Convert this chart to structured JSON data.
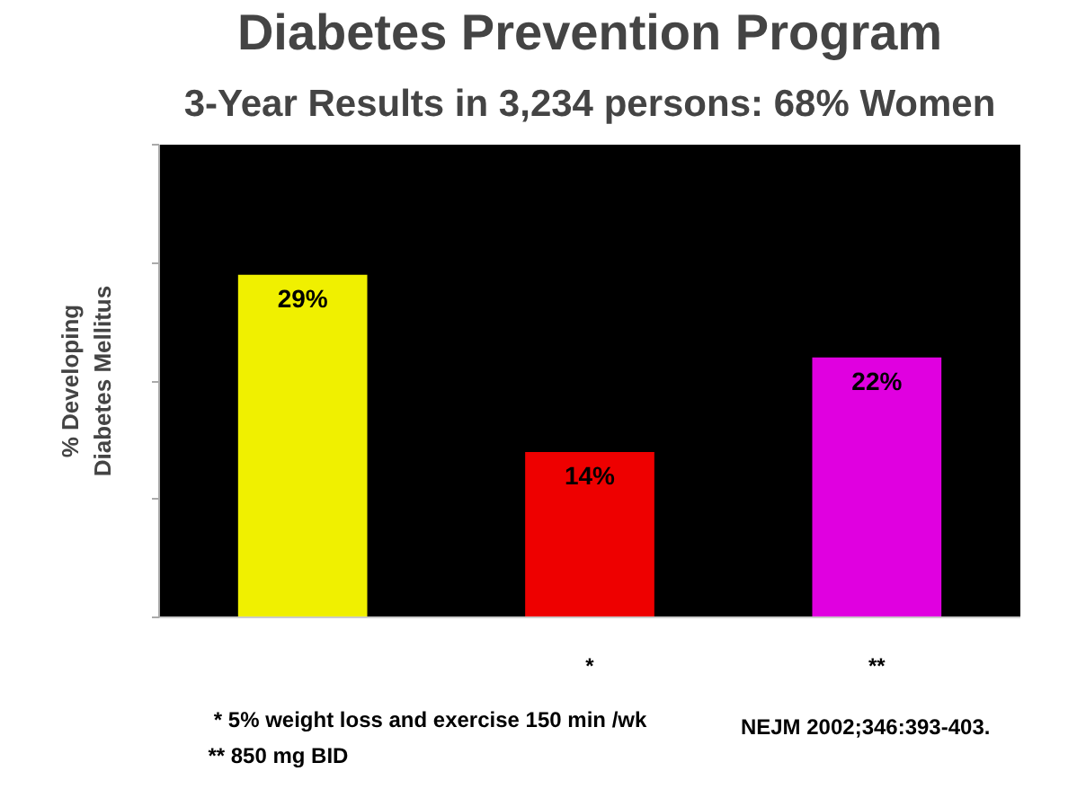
{
  "chart_data": {
    "type": "bar",
    "title": "Diabetes Prevention Program",
    "subtitle": "3-Year Results in 3,234 persons: 68% Women",
    "ylabel": "% Developing\nDiabetes Mellitus",
    "categories": [
      null,
      "*",
      "**"
    ],
    "values": [
      29,
      14,
      22
    ],
    "colors": [
      "#f0f000",
      "#ee0000",
      "#e000e0"
    ],
    "value_labels": [
      "29%",
      "14%",
      "22%"
    ],
    "ylim": [
      0,
      40
    ],
    "yticks": [
      {
        "value": 0,
        "label": null
      },
      {
        "value": 10,
        "label": null
      },
      {
        "value": 20,
        "label": null
      },
      {
        "value": 30,
        "label": null
      },
      {
        "value": 40,
        "label": null
      }
    ],
    "tick_labels": "x",
    "grid": false,
    "annotations": [
      "* 5% weight loss and exercise 150 min /wk",
      "** 850 mg BID",
      "NEJM 2002;346:393-403."
    ]
  }
}
